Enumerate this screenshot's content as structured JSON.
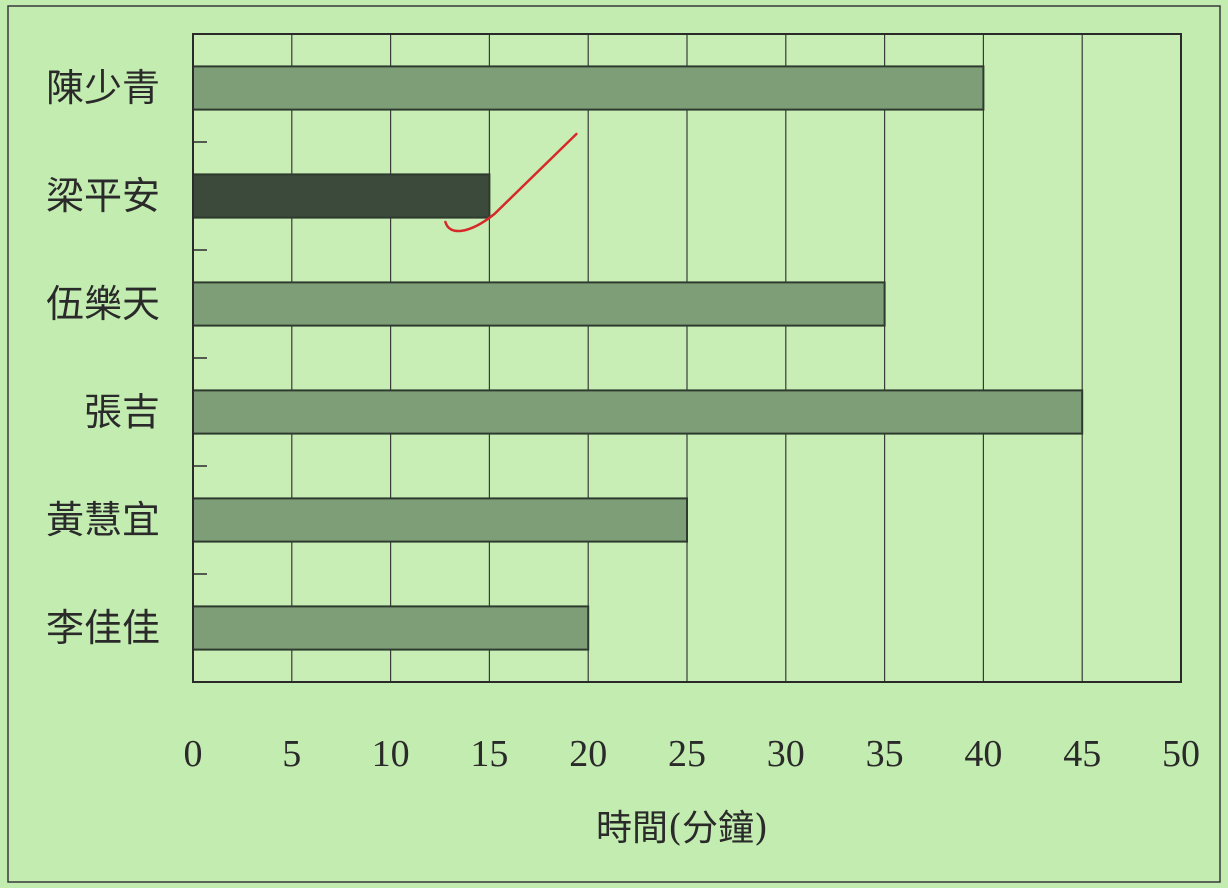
{
  "chart_data": {
    "type": "bar",
    "orientation": "horizontal",
    "categories": [
      "陳少青",
      "梁平安",
      "伍樂天",
      "張吉",
      "黃慧宜",
      "李佳佳"
    ],
    "values": [
      40,
      15,
      35,
      45,
      25,
      20
    ],
    "xlabel": "時間(分鐘)",
    "ylabel": "",
    "xlim": [
      0,
      50
    ],
    "xticks": [
      "0",
      "5",
      "10",
      "15",
      "20",
      "25",
      "30",
      "35",
      "40",
      "45",
      "50"
    ],
    "grid": "vertical",
    "highlighted_category": "梁平安",
    "colors": {
      "background": "#c3ecb0",
      "plot_background": "#c8eeb6",
      "bar_fill": "#7e9e78",
      "bar_highlight_fill": "#3c4a3b",
      "bar_stroke": "#2f3a2e",
      "grid": "#3a3a3a",
      "check_mark": "#d62a2a"
    }
  }
}
